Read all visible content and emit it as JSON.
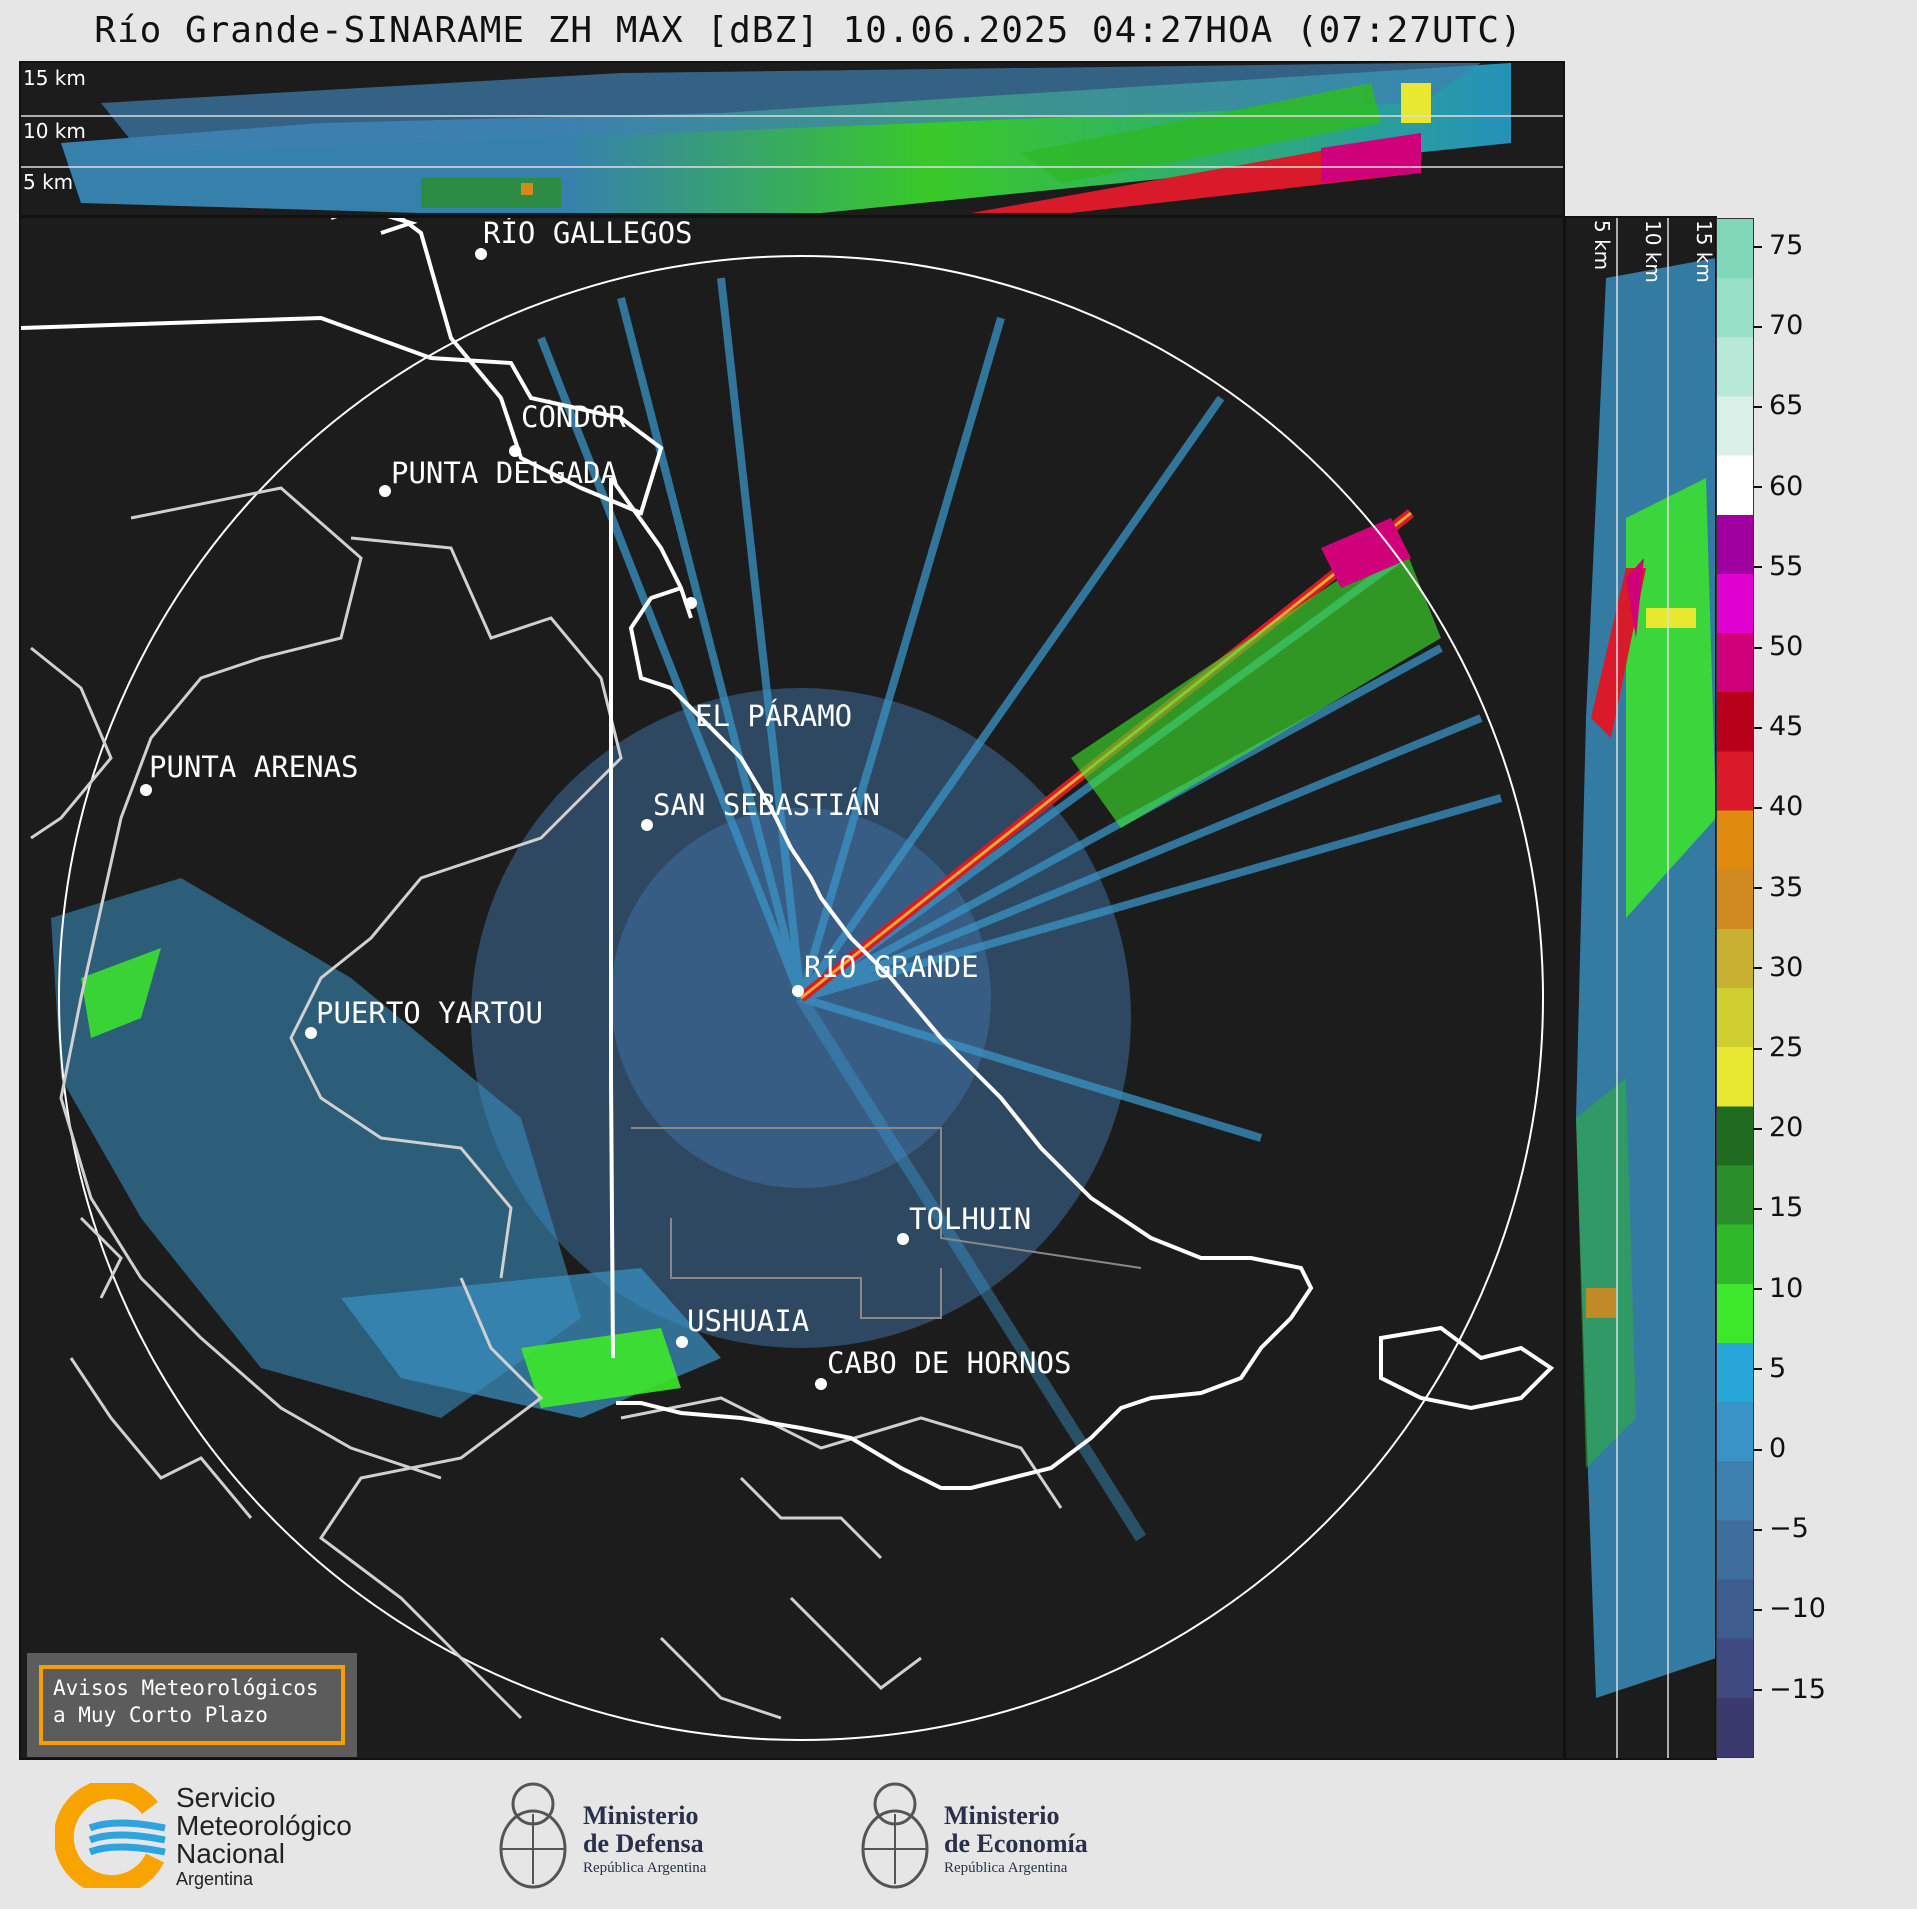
{
  "title": "Río Grande-SINARAME ZH MAX [dBZ] 10.06.2025 04:27HOA (07:27UTC)",
  "top_panel": {
    "height_labels": [
      "15 km",
      "10 km",
      "5 km"
    ]
  },
  "right_panel": {
    "height_labels": [
      "5 km",
      "10 km",
      "15 km"
    ]
  },
  "colorbar": {
    "ticks": [
      "75",
      "70",
      "65",
      "60",
      "55",
      "50",
      "45",
      "40",
      "35",
      "30",
      "25",
      "20",
      "15",
      "10",
      "5",
      "0",
      "−5",
      "−10",
      "−15"
    ],
    "colors": [
      "#3a3a6e",
      "#3f4a80",
      "#3e5d8f",
      "#3f6d9c",
      "#3e80b0",
      "#3a93c6",
      "#27a6d8",
      "#3de82a",
      "#2fb82a",
      "#2a8f2a",
      "#1f6b1f",
      "#e8e830",
      "#cfcf30",
      "#c8b030",
      "#d08a20",
      "#e08a10",
      "#d81a2a",
      "#b8001a",
      "#d0007a",
      "#e000d0",
      "#a000a0",
      "#ffffff",
      "#d8f0e8",
      "#b8e8d8",
      "#98e0c8",
      "#80d8b8"
    ],
    "unit": "dBZ"
  },
  "cities": [
    {
      "name": "RÍO GALLEGOS"
    },
    {
      "name": "CÓNDOR"
    },
    {
      "name": "PUNTA DELGADA"
    },
    {
      "name": "EL PÁRAMO"
    },
    {
      "name": "PUNTA ARENAS"
    },
    {
      "name": "SAN SEBASTIÁN"
    },
    {
      "name": "RÍO GRANDE"
    },
    {
      "name": "PUERTO YARTOU"
    },
    {
      "name": "TOLHUIN"
    },
    {
      "name": "USHUAIA"
    },
    {
      "name": "CABO DE HORNOS"
    }
  ],
  "notice": {
    "line1": "Avisos Meteorológicos",
    "line2": "a Muy Corto Plazo"
  },
  "logos": {
    "smn": {
      "line1": "Servicio",
      "line2": "Meteorológico",
      "line3": "Nacional",
      "line4": "Argentina"
    },
    "defensa": {
      "line1": "Ministerio",
      "line2": "de Defensa",
      "line3": "República Argentina"
    },
    "economia": {
      "line1": "Ministerio",
      "line2": "de Economía",
      "line3": "República Argentina"
    }
  }
}
